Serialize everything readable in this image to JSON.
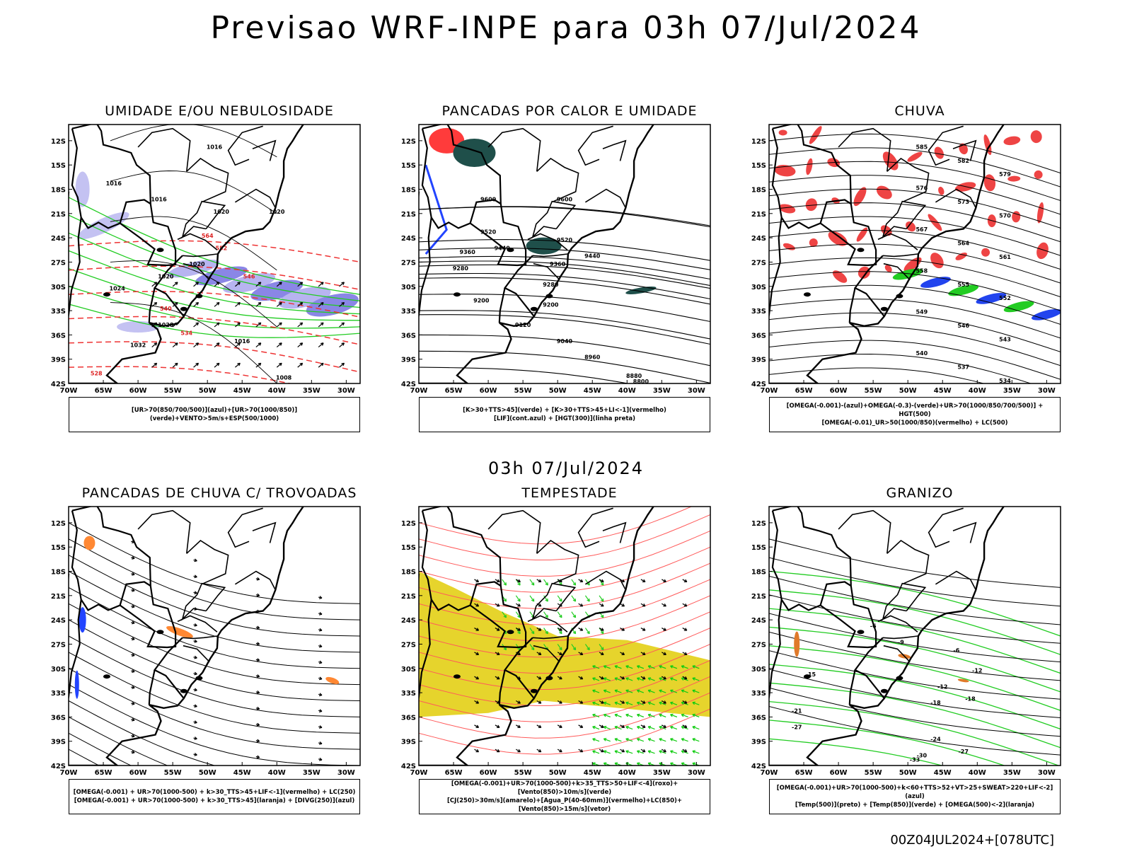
{
  "title": "Previsao WRF-INPE  para 03h 07/Jul/2024",
  "mid_title": "03h 07/Jul/2024",
  "footer": "00Z04JUL2024+[078UTC]",
  "axes": {
    "lat_labels": [
      "12S",
      "15S",
      "18S",
      "21S",
      "24S",
      "27S",
      "30S",
      "33S",
      "36S",
      "39S",
      "42S"
    ],
    "lon_labels": [
      "70W",
      "65W",
      "60W",
      "55W",
      "50W",
      "45W",
      "40W",
      "35W",
      "30W"
    ]
  },
  "panels": [
    {
      "id": "umidade",
      "title": "UMIDADE E/OU NEBULOSIDADE",
      "legend": [
        "[UR>70(850/700/500)](azul)+[UR>70(1000/850)](verde)+VENTO>5m/s+ESP(500/1000)"
      ],
      "contour_labels": [
        "1016",
        "1016",
        "1016",
        "1020",
        "1020",
        "1020",
        "1020",
        "1024",
        "1028",
        "1032",
        "1008",
        "1016",
        "552",
        "564",
        "546",
        "540",
        "534",
        "528"
      ]
    },
    {
      "id": "pancadas-calor",
      "title": "PANCADAS POR CALOR E UMIDADE",
      "legend": [
        "[K>30+TTS>45](verde) + [K>30+TTS>45+LI<-1](vermelho)",
        "[LIF](cont.azul) + [HGT(300)](linha preta)"
      ],
      "contour_labels": [
        "9600",
        "9600",
        "9520",
        "9520",
        "9440",
        "9440",
        "9360",
        "9360",
        "9280",
        "9280",
        "9200",
        "9200",
        "9120",
        "9040",
        "8960",
        "8880",
        "8800"
      ]
    },
    {
      "id": "chuva",
      "title": "CHUVA",
      "legend": [
        "[OMEGA(-0.001)-(azul)+OMEGA(-0.3)-(verde)+UR>70(1000/850/700/500)] + HGT(500)",
        "[OMEGA(-0.01)_UR>50(1000/850)(vermelho) + LC(500)"
      ],
      "contour_labels": [
        "585",
        "582",
        "579",
        "576",
        "573",
        "570",
        "567",
        "564",
        "561",
        "558",
        "555",
        "552",
        "549",
        "546",
        "543",
        "540",
        "537",
        "534"
      ]
    },
    {
      "id": "pancadas-trovoadas",
      "title": "PANCADAS DE CHUVA C/ TROVOADAS",
      "legend": [
        "[OMEGA(-0.001) + UR>70(1000-500) + k>30_TTS>45+LIF<-1](vermelho) + LC(250)",
        "[OMEGA(-0.001) + UR>70(1000-500) + k>30_TTS>45](laranja) + [DIVG(250)](azul)"
      ],
      "contour_labels": []
    },
    {
      "id": "tempestade",
      "title": "TEMPESTADE",
      "legend": [
        "[OMEGA(-0.001)+UR>70(1000-500)+k>35_TTS>50+LIF<-4](roxo)+[Vento(850)>10m/s](verde)",
        "[CJ(250)>30m/s](amarelo)+[Agua_P(40-60mm)](vermelho)+LC(850)+[Vento(850)>15m/s](vetor)"
      ],
      "contour_labels": []
    },
    {
      "id": "granizo",
      "title": "GRANIZO",
      "legend": [
        "[OMEGA(-0.001)+UR>70(1000-500)+k<60+TTS>52+VT>25+SWEAT>220+LIF<-2](azul)",
        "[Temp(500)](preto) + [Temp(850)](verde) + [OMEGA(500)<-2](laranja)"
      ],
      "contour_labels": [
        "-6",
        "-6",
        "-9",
        "-12",
        "-12",
        "-15",
        "-18",
        "-18",
        "-21",
        "-24",
        "-27",
        "-27",
        "-30",
        "-33"
      ]
    }
  ]
}
